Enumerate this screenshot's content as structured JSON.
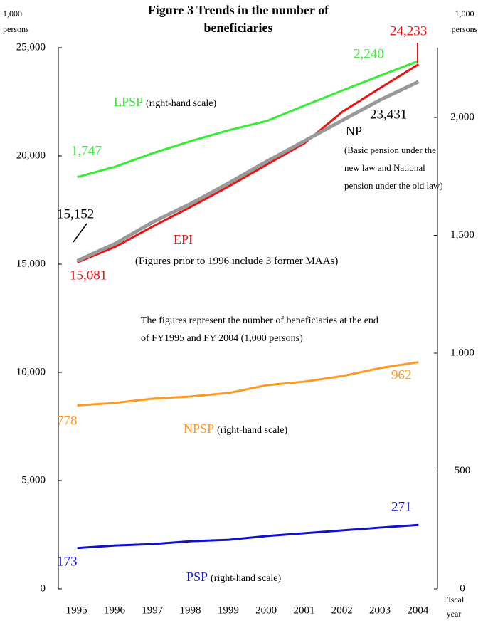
{
  "chart_data": {
    "type": "line",
    "title": "Figure 3  Trends in the number of beneficiaries",
    "y_unit": "1,000 persons",
    "y2_unit": "1,000 persons",
    "x_label": "Fiscal year",
    "categories": [
      "1995",
      "1996",
      "1997",
      "1998",
      "1999",
      "2000",
      "2001",
      "2002",
      "2003",
      "2004"
    ],
    "ylim": [
      0,
      25000
    ],
    "yticks": [
      0,
      {
        "value": 5000,
        "label": "5,000"
      },
      {
        "value": 10000,
        "label": "10,000"
      },
      {
        "value": 15000,
        "label": "15,000"
      },
      {
        "value": 20000,
        "label": "20,000"
      },
      {
        "value": 25000,
        "label": "25,000"
      }
    ],
    "y2lim": [
      0,
      2296
    ],
    "y2ticks": [
      0,
      500,
      {
        "value": 1000,
        "label": "1,000"
      },
      {
        "value": 1500,
        "label": "1,500"
      },
      {
        "value": 2000,
        "label": "2,000"
      }
    ],
    "grid": false,
    "series": [
      {
        "name": "LPSP",
        "note": "(right-hand scale)",
        "color": "#33ee33",
        "axis": "y2",
        "values": [
          1747,
          1791,
          1849,
          1900,
          1946,
          1985,
          2051,
          2115,
          2178,
          2240
        ],
        "value_labels": [
          "1,747",
          null,
          null,
          null,
          null,
          null,
          null,
          null,
          null,
          "2,240"
        ]
      },
      {
        "name": "EPI",
        "note": "(Figures prior to 1996 include 3 former MAAs)",
        "color": "#ee1111",
        "axis": "y",
        "values": [
          15081,
          15800,
          16750,
          17650,
          18600,
          19600,
          20600,
          22050,
          23150,
          24233
        ],
        "value_labels": [
          "15,081",
          null,
          null,
          null,
          null,
          null,
          null,
          null,
          null,
          "24,233"
        ]
      },
      {
        "name": "NP",
        "note": "(Basic pension under the new law and National pension under the old law)",
        "color": "#999999",
        "axis": "y",
        "values": [
          15152,
          15950,
          16950,
          17800,
          18750,
          19750,
          20700,
          21650,
          22600,
          23431
        ],
        "value_labels": [
          "15,152",
          null,
          null,
          null,
          null,
          null,
          null,
          null,
          null,
          "23,431"
        ]
      },
      {
        "name": "NPSP",
        "note": "(right-hand scale)",
        "color": "#ff9922",
        "axis": "y2",
        "values": [
          778,
          789,
          807,
          816,
          831,
          864,
          879,
          903,
          937,
          962
        ],
        "value_labels": [
          "778",
          null,
          null,
          null,
          null,
          null,
          null,
          null,
          null,
          "962"
        ]
      },
      {
        "name": "PSP",
        "note": "(right-hand scale)",
        "color": "#1111cc",
        "axis": "y2",
        "values": [
          173,
          184,
          190,
          202,
          208,
          224,
          236,
          248,
          260,
          271
        ],
        "value_labels": [
          "173",
          null,
          null,
          null,
          null,
          null,
          null,
          null,
          null,
          "271"
        ]
      }
    ],
    "annotation": "The figures represent the number of beneficiaries at the end of FY1995 and FY 2004 (1,000 persons)"
  }
}
